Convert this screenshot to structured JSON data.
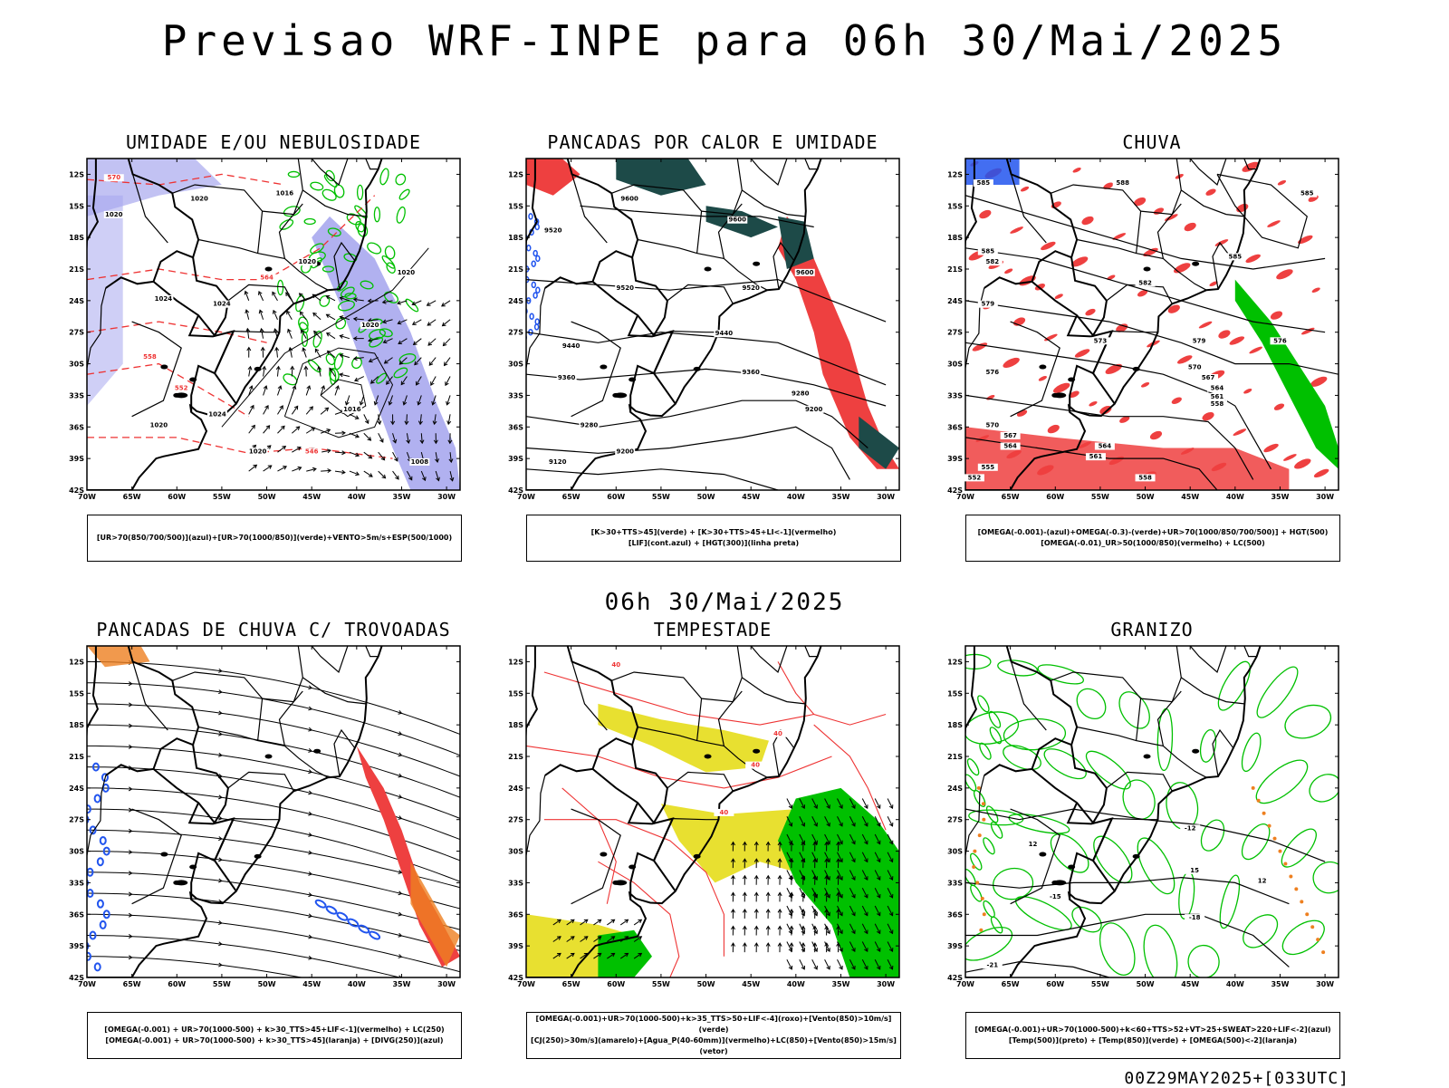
{
  "title": "Previsao WRF-INPE  para 06h 30/Mai/2025",
  "subtitle": "06h 30/Mai/2025",
  "footer": "00Z29MAY2025+[033UTC]",
  "colors": {
    "humid_blue": "#a8a8ee",
    "wind_green": "#00c000",
    "contour_red": "#ee3333",
    "rain_red": "#ee4040",
    "blue": "#2255ee",
    "orange": "#ee8020",
    "yellow": "#e8e030",
    "teal": "#1d4a48"
  },
  "axes": {
    "lat_labels": [
      "12S",
      "15S",
      "18S",
      "21S",
      "24S",
      "27S",
      "30S",
      "33S",
      "36S",
      "39S",
      "42S"
    ],
    "lon_labels": [
      "70W",
      "65W",
      "60W",
      "55W",
      "50W",
      "45W",
      "40W",
      "35W",
      "30W"
    ]
  },
  "chart_data": [
    {
      "type": "map",
      "title": "UMIDADE E/OU NEBULOSIDADE",
      "legend": [
        "[UR>70(850/700/500)](azul)+[UR>70(1000/850)](verde)+VENTO>5m/s+ESP(500/1000)"
      ],
      "contour_labels": [
        {
          "text": "570",
          "lon": -67,
          "lat": -12.5,
          "color": "red"
        },
        {
          "text": "1020",
          "lon": -57.5,
          "lat": -14.5,
          "color": "black"
        },
        {
          "text": "1016",
          "lon": -48,
          "lat": -14,
          "color": "black"
        },
        {
          "text": "1020",
          "lon": -67,
          "lat": -16,
          "color": "black"
        },
        {
          "text": "1020",
          "lon": -45.5,
          "lat": -20.5,
          "color": "black"
        },
        {
          "text": "1020",
          "lon": -34.5,
          "lat": -21.5,
          "color": "black"
        },
        {
          "text": "564",
          "lon": -50,
          "lat": -22,
          "color": "red"
        },
        {
          "text": "1024",
          "lon": -61.5,
          "lat": -24,
          "color": "black"
        },
        {
          "text": "1024",
          "lon": -55,
          "lat": -24.5,
          "color": "black"
        },
        {
          "text": "1020",
          "lon": -38.5,
          "lat": -26.5,
          "color": "black"
        },
        {
          "text": "558",
          "lon": -63,
          "lat": -29.5,
          "color": "red"
        },
        {
          "text": "552",
          "lon": -59.5,
          "lat": -32.5,
          "color": "red"
        },
        {
          "text": "1024",
          "lon": -55.5,
          "lat": -35,
          "color": "black"
        },
        {
          "text": "1020",
          "lon": -62,
          "lat": -36,
          "color": "black"
        },
        {
          "text": "1016",
          "lon": -40.5,
          "lat": -34.5,
          "color": "black"
        },
        {
          "text": "1020",
          "lon": -51,
          "lat": -38.5,
          "color": "black"
        },
        {
          "text": "546",
          "lon": -45,
          "lat": -38.5,
          "color": "red"
        },
        {
          "text": "1008",
          "lon": -33,
          "lat": -39.5,
          "color": "black"
        }
      ]
    },
    {
      "type": "map",
      "title": "PANCADAS POR CALOR E UMIDADE",
      "legend": [
        "[K>30+TTS>45](verde) + [K>30+TTS>45+LI<-1](vermelho)",
        "[LIF](cont.azul) + [HGT(300)](linha preta)"
      ],
      "contour_labels": [
        {
          "text": "9600",
          "lon": -58.5,
          "lat": -14.5,
          "color": "black"
        },
        {
          "text": "9600",
          "lon": -46.5,
          "lat": -16.5,
          "color": "black"
        },
        {
          "text": "9520",
          "lon": -67,
          "lat": -17.5,
          "color": "black"
        },
        {
          "text": "9600",
          "lon": -39,
          "lat": -21.5,
          "color": "black"
        },
        {
          "text": "9520",
          "lon": -59,
          "lat": -23,
          "color": "black"
        },
        {
          "text": "9520",
          "lon": -45,
          "lat": -23,
          "color": "black"
        },
        {
          "text": "9440",
          "lon": -48,
          "lat": -27.3,
          "color": "black"
        },
        {
          "text": "9440",
          "lon": -65,
          "lat": -28.5,
          "color": "black"
        },
        {
          "text": "9360",
          "lon": -65.5,
          "lat": -31.5,
          "color": "black"
        },
        {
          "text": "9360",
          "lon": -45,
          "lat": -31,
          "color": "black"
        },
        {
          "text": "9280",
          "lon": -39.5,
          "lat": -33,
          "color": "black"
        },
        {
          "text": "9200",
          "lon": -38,
          "lat": -34.5,
          "color": "black"
        },
        {
          "text": "9280",
          "lon": -63,
          "lat": -36,
          "color": "black"
        },
        {
          "text": "9200",
          "lon": -59,
          "lat": -38.5,
          "color": "black"
        },
        {
          "text": "9120",
          "lon": -66.5,
          "lat": -39.5,
          "color": "black"
        }
      ]
    },
    {
      "type": "map",
      "title": "CHUVA",
      "legend": [
        "[OMEGA(-0.001)-(azul)+OMEGA(-0.3)-(verde)+UR>70(1000/850/700/500)] + HGT(500)",
        "[OMEGA(-0.01)_UR>50(1000/850)(vermelho) + LC(500)"
      ],
      "contour_labels": [
        {
          "text": "585",
          "lon": -68,
          "lat": -13,
          "color": "black"
        },
        {
          "text": "588",
          "lon": -52.5,
          "lat": -13,
          "color": "black"
        },
        {
          "text": "585",
          "lon": -32,
          "lat": -14,
          "color": "black"
        },
        {
          "text": "585",
          "lon": -67.5,
          "lat": -19.5,
          "color": "black"
        },
        {
          "text": "582",
          "lon": -67,
          "lat": -20.5,
          "color": "black"
        },
        {
          "text": "582",
          "lon": -50,
          "lat": -22.5,
          "color": "black"
        },
        {
          "text": "585",
          "lon": -40,
          "lat": -20,
          "color": "black"
        },
        {
          "text": "579",
          "lon": -67.5,
          "lat": -24.5,
          "color": "black"
        },
        {
          "text": "573",
          "lon": -55,
          "lat": -28,
          "color": "black"
        },
        {
          "text": "579",
          "lon": -44,
          "lat": -28,
          "color": "black"
        },
        {
          "text": "576",
          "lon": -35,
          "lat": -28,
          "color": "black"
        },
        {
          "text": "576",
          "lon": -67,
          "lat": -31,
          "color": "black"
        },
        {
          "text": "570",
          "lon": -44.5,
          "lat": -30.5,
          "color": "black"
        },
        {
          "text": "567",
          "lon": -43,
          "lat": -31.5,
          "color": "black"
        },
        {
          "text": "564",
          "lon": -42,
          "lat": -32.5,
          "color": "black"
        },
        {
          "text": "561",
          "lon": -42,
          "lat": -33.3,
          "color": "black"
        },
        {
          "text": "558",
          "lon": -42,
          "lat": -34,
          "color": "black"
        },
        {
          "text": "570",
          "lon": -67,
          "lat": -36,
          "color": "black"
        },
        {
          "text": "567",
          "lon": -65,
          "lat": -37,
          "color": "black"
        },
        {
          "text": "564",
          "lon": -65,
          "lat": -38,
          "color": "black"
        },
        {
          "text": "564",
          "lon": -54.5,
          "lat": -38,
          "color": "black"
        },
        {
          "text": "561",
          "lon": -55.5,
          "lat": -39,
          "color": "black"
        },
        {
          "text": "555",
          "lon": -67.5,
          "lat": -40,
          "color": "black"
        },
        {
          "text": "552",
          "lon": -69,
          "lat": -41,
          "color": "black"
        },
        {
          "text": "558",
          "lon": -50,
          "lat": -41,
          "color": "black"
        }
      ]
    },
    {
      "type": "map",
      "title": "PANCADAS DE CHUVA C/ TROVOADAS",
      "legend": [
        "[OMEGA(-0.001) + UR>70(1000-500) + k>30_TTS>45+LIF<-1](vermelho) + LC(250)",
        "[OMEGA(-0.001) + UR>70(1000-500) + k>30_TTS>45](laranja) + [DIVG(250)](azul)"
      ],
      "contour_labels": []
    },
    {
      "type": "map",
      "title": "TEMPESTADE",
      "legend": [
        "[OMEGA(-0.001)+UR>70(1000-500)+k>35_TTS>50+LIF<-4](roxo)+[Vento(850)>10m/s](verde)",
        "[CJ(250)>30m/s](amarelo)+[Agua_P(40-60mm)](vermelho)+LC(850)+[Vento(850)>15m/s](vetor)"
      ],
      "contour_labels": [
        {
          "text": "40",
          "lon": -60,
          "lat": -12.5,
          "color": "red"
        },
        {
          "text": "40",
          "lon": -42,
          "lat": -19,
          "color": "red"
        },
        {
          "text": "40",
          "lon": -44.5,
          "lat": -22,
          "color": "red"
        },
        {
          "text": "40",
          "lon": -48,
          "lat": -26.5,
          "color": "red"
        }
      ]
    },
    {
      "type": "map",
      "title": "GRANIZO",
      "legend": [
        "[OMEGA(-0.001)+UR>70(1000-500)+k<60+TTS>52+VT>25+SWEAT>220+LIF<-2](azul)",
        "[Temp(500)](preto) + [Temp(850)](verde) + [OMEGA(500)<-2](laranja)"
      ],
      "contour_labels": [
        {
          "text": "-12",
          "lon": -45,
          "lat": -28,
          "color": "black"
        },
        {
          "text": "12",
          "lon": -62.5,
          "lat": -29.5,
          "color": "black"
        },
        {
          "text": "15",
          "lon": -44.5,
          "lat": -32,
          "color": "black"
        },
        {
          "text": "-15",
          "lon": -60,
          "lat": -34.5,
          "color": "black"
        },
        {
          "text": "12",
          "lon": -37,
          "lat": -33,
          "color": "black"
        },
        {
          "text": "-18",
          "lon": -44.5,
          "lat": -36.5,
          "color": "black"
        },
        {
          "text": "-21",
          "lon": -67,
          "lat": -41,
          "color": "black"
        }
      ]
    }
  ]
}
